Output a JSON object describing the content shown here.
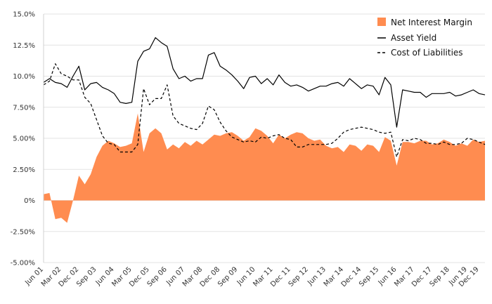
{
  "chart_data": {
    "type": "area",
    "x_dates": [
      "2001-06",
      "2001-09",
      "2001-12",
      "2002-03",
      "2002-06",
      "2002-09",
      "2002-12",
      "2003-03",
      "2003-06",
      "2003-09",
      "2003-12",
      "2004-03",
      "2004-06",
      "2004-09",
      "2004-12",
      "2005-03",
      "2005-06",
      "2005-09",
      "2005-12",
      "2006-03",
      "2006-06",
      "2006-09",
      "2006-12",
      "2007-03",
      "2007-06",
      "2007-09",
      "2007-12",
      "2008-03",
      "2008-06",
      "2008-09",
      "2008-12",
      "2009-03",
      "2009-06",
      "2009-09",
      "2009-12",
      "2010-03",
      "2010-06",
      "2010-09",
      "2010-12",
      "2011-03",
      "2011-06",
      "2011-09",
      "2011-12",
      "2012-03",
      "2012-06",
      "2012-09",
      "2012-12",
      "2013-03",
      "2013-06",
      "2013-09",
      "2013-12",
      "2014-03",
      "2014-06",
      "2014-09",
      "2014-12",
      "2015-03",
      "2015-06",
      "2015-09",
      "2015-12",
      "2016-03",
      "2016-06",
      "2016-09",
      "2016-12",
      "2017-03",
      "2017-06",
      "2017-09",
      "2017-12",
      "2018-03",
      "2018-06",
      "2018-09",
      "2018-12",
      "2019-03",
      "2019-06",
      "2019-09",
      "2019-12",
      "2020-03"
    ],
    "x_tick_labels": [
      "Jun 01",
      "Mar 02",
      "Dec 02",
      "Sep 03",
      "Jun 04",
      "Mar 05",
      "Dec 05",
      "Sep 06",
      "Jun 07",
      "Mar 08",
      "Dec 08",
      "Sep 09",
      "Jun 10",
      "Mar 11",
      "Dec 11",
      "Sep 12",
      "Jun 13",
      "Mar 14",
      "Dec 14",
      "Sep 15",
      "Jun 16",
      "Mar 17",
      "Dec 17",
      "Sep 18",
      "Jun 19",
      "Dec 19"
    ],
    "x_tick_positions": [
      "2001-06",
      "2002-03",
      "2002-12",
      "2003-09",
      "2004-06",
      "2005-03",
      "2005-12",
      "2006-09",
      "2007-06",
      "2008-03",
      "2008-12",
      "2009-09",
      "2010-06",
      "2011-03",
      "2011-12",
      "2012-09",
      "2013-06",
      "2014-03",
      "2014-12",
      "2015-09",
      "2016-06",
      "2017-03",
      "2017-12",
      "2018-09",
      "2019-06",
      "2019-12"
    ],
    "y_tick_labels": [
      "15.0%",
      "12.5%",
      "10.0%",
      "7.50%",
      "5.00%",
      "2.50%",
      "0%",
      "-2.50%",
      "-5.00%"
    ],
    "y_tick_values": [
      15,
      12.5,
      10,
      7.5,
      5,
      2.5,
      0,
      -2.5,
      -5
    ],
    "ylim": [
      -5,
      15
    ],
    "grid": "horizontal",
    "legend_position": "top-right",
    "series": [
      {
        "name": "Net Interest Margin",
        "style": "area",
        "color": "#ff8c50",
        "values": [
          0.5,
          0.6,
          -1.5,
          -1.4,
          -1.8,
          0.0,
          2.0,
          1.3,
          2.1,
          3.5,
          4.4,
          4.8,
          4.6,
          4.3,
          4.4,
          4.6,
          7.0,
          3.9,
          5.4,
          5.8,
          5.4,
          4.1,
          4.5,
          4.2,
          4.7,
          4.4,
          4.8,
          4.5,
          4.9,
          5.3,
          5.2,
          5.4,
          5.5,
          5.2,
          4.8,
          5.1,
          5.8,
          5.6,
          5.2,
          4.6,
          5.3,
          5.0,
          5.3,
          5.5,
          5.4,
          5.0,
          4.8,
          4.9,
          4.4,
          4.2,
          4.3,
          3.9,
          4.5,
          4.4,
          4.0,
          4.5,
          4.4,
          3.9,
          5.1,
          4.8,
          2.8,
          4.7,
          4.7,
          4.6,
          4.8,
          4.8,
          4.5,
          4.6,
          4.9,
          4.7,
          4.4,
          4.6,
          4.4,
          4.9,
          4.7,
          4.8
        ]
      },
      {
        "name": "Asset Yield",
        "style": "solid",
        "color": "#000000",
        "values": [
          9.5,
          9.8,
          9.5,
          9.4,
          9.1,
          10.0,
          10.8,
          8.9,
          9.4,
          9.5,
          9.1,
          8.9,
          8.6,
          7.9,
          7.8,
          7.9,
          11.2,
          12.0,
          12.2,
          13.1,
          12.7,
          12.4,
          10.6,
          9.8,
          10.0,
          9.6,
          9.8,
          9.8,
          11.7,
          11.9,
          10.8,
          10.5,
          10.1,
          9.6,
          9.0,
          9.9,
          10.0,
          9.4,
          9.8,
          9.3,
          10.1,
          9.5,
          9.2,
          9.3,
          9.1,
          8.8,
          9.0,
          9.2,
          9.2,
          9.4,
          9.5,
          9.2,
          9.8,
          9.4,
          9.0,
          9.3,
          9.2,
          8.5,
          9.9,
          9.3,
          5.9,
          8.9,
          8.8,
          8.7,
          8.7,
          8.3,
          8.6,
          8.6,
          8.6,
          8.7,
          8.4,
          8.5,
          8.7,
          8.9,
          8.6,
          8.5
        ]
      },
      {
        "name": "Cost of Liabilities",
        "style": "dashed",
        "color": "#000000",
        "values": [
          9.3,
          9.6,
          11.0,
          10.2,
          10.0,
          9.7,
          9.7,
          8.3,
          7.8,
          6.5,
          5.2,
          4.6,
          4.5,
          3.9,
          3.9,
          3.9,
          4.5,
          9.0,
          7.7,
          8.2,
          8.2,
          9.3,
          6.8,
          6.2,
          6.0,
          5.8,
          5.7,
          6.2,
          7.6,
          7.3,
          6.3,
          5.6,
          5.1,
          4.9,
          4.7,
          4.8,
          4.7,
          5.1,
          5.0,
          5.2,
          5.3,
          5.0,
          4.9,
          4.3,
          4.3,
          4.5,
          4.5,
          4.5,
          4.5,
          4.6,
          5.0,
          5.5,
          5.7,
          5.8,
          5.9,
          5.8,
          5.7,
          5.5,
          5.4,
          5.5,
          3.5,
          4.9,
          4.8,
          5.0,
          4.9,
          4.6,
          4.6,
          4.5,
          4.7,
          4.5,
          4.5,
          4.6,
          5.0,
          4.9,
          4.7,
          4.5
        ]
      }
    ]
  }
}
